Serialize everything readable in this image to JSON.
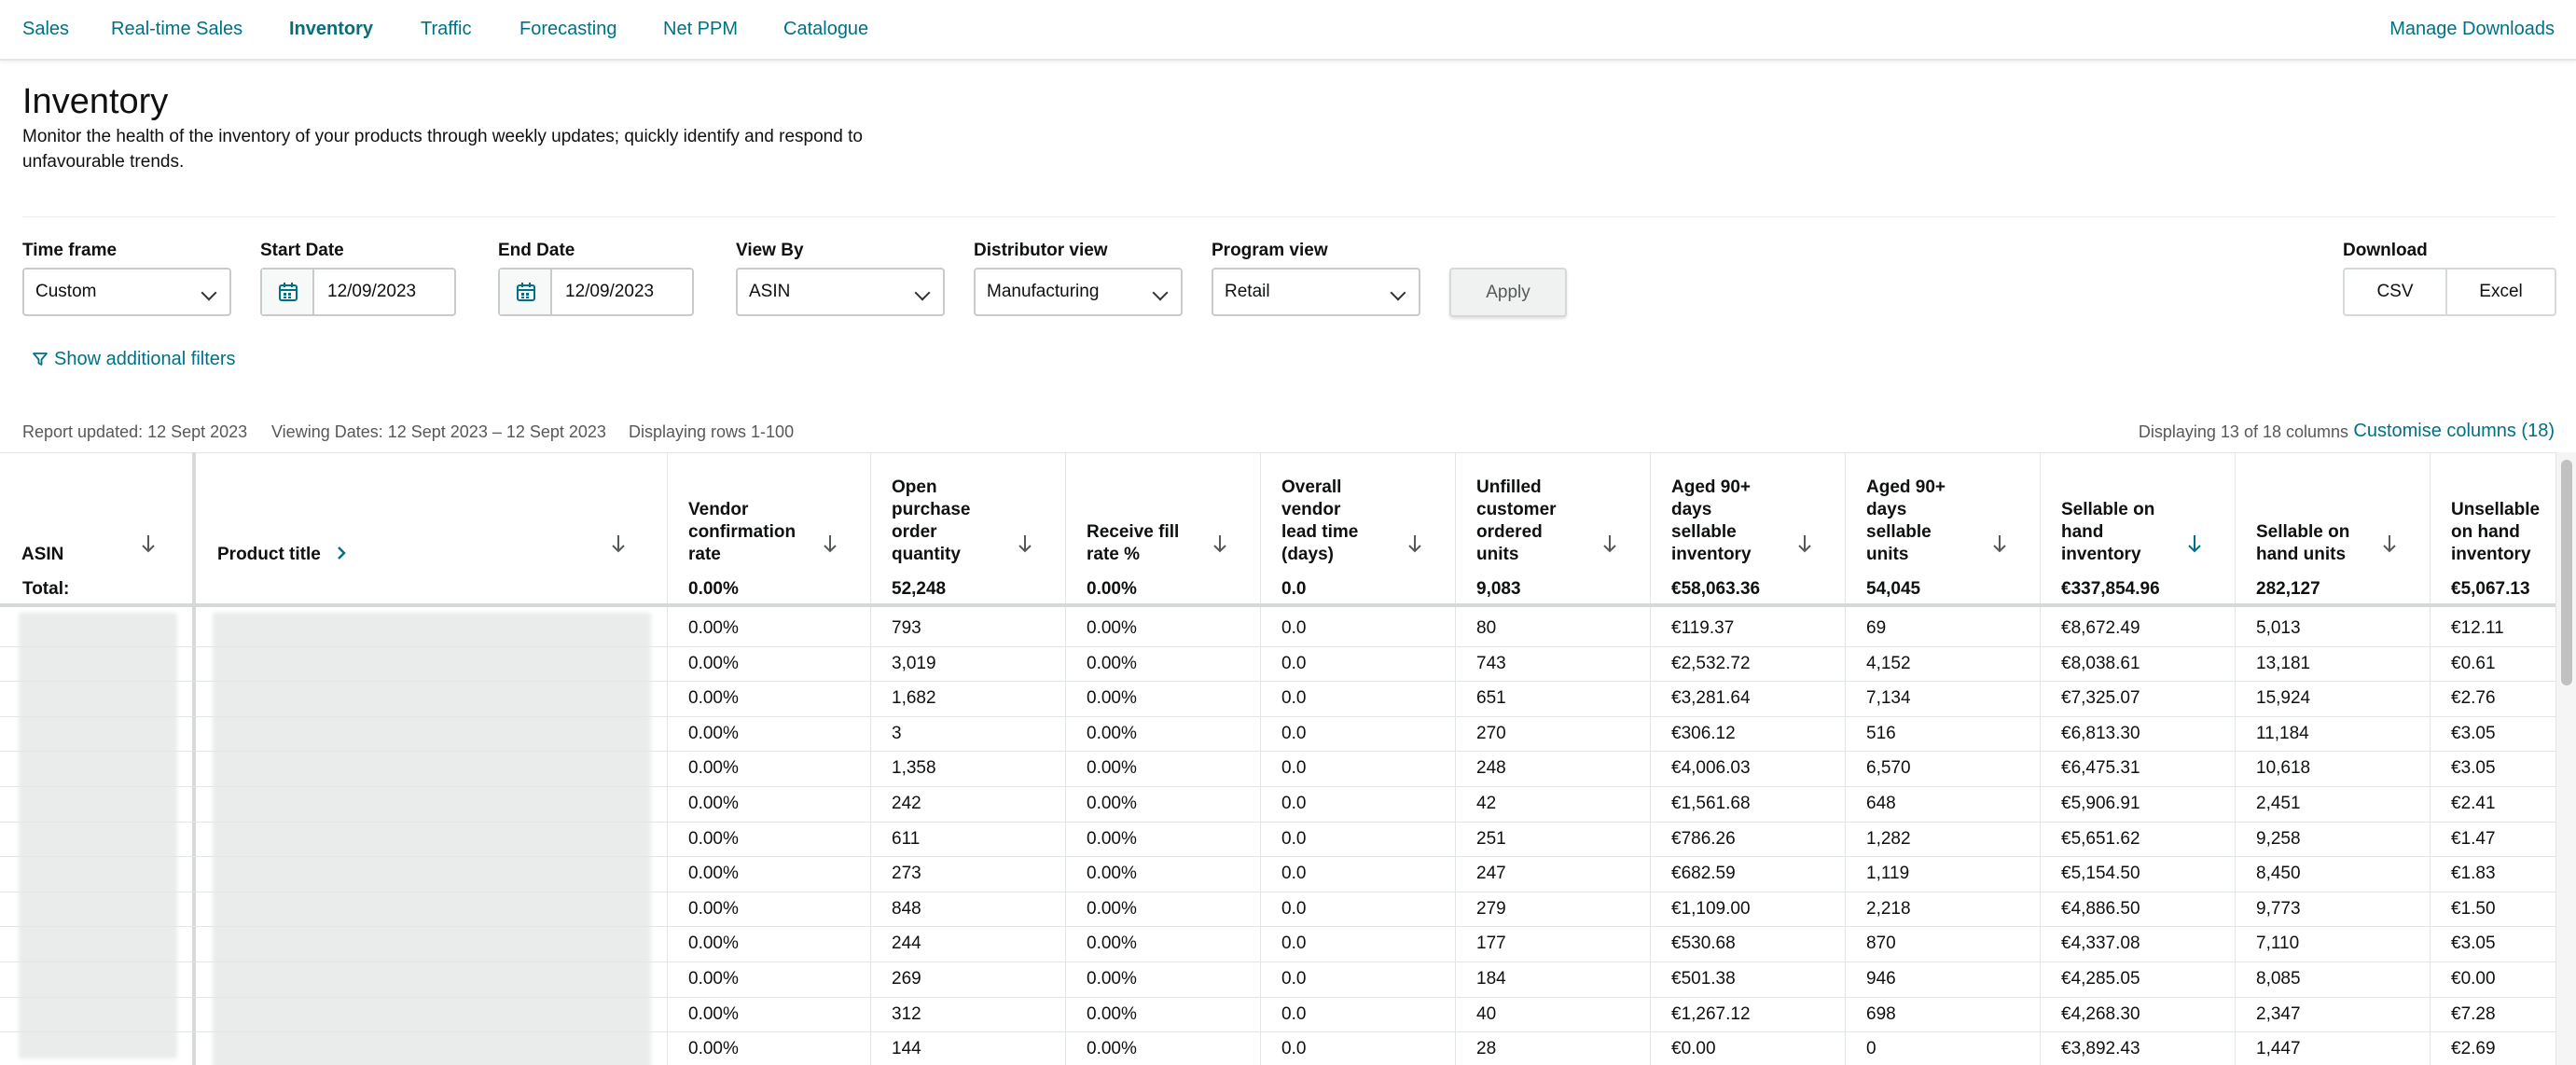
{
  "nav": {
    "items": [
      "Sales",
      "Real-time Sales",
      "Inventory",
      "Traffic",
      "Forecasting",
      "Net PPM",
      "Catalogue"
    ],
    "active": "Inventory",
    "manage_downloads": "Manage Downloads"
  },
  "page": {
    "title": "Inventory",
    "description": "Monitor the health of the inventory of your products through weekly updates; quickly identify and respond to unfavourable trends."
  },
  "filters": {
    "time_frame": {
      "label": "Time frame",
      "value": "Custom"
    },
    "start_date": {
      "label": "Start Date",
      "value": "12/09/2023"
    },
    "end_date": {
      "label": "End Date",
      "value": "12/09/2023"
    },
    "view_by": {
      "label": "View By",
      "value": "ASIN"
    },
    "distributor_view": {
      "label": "Distributor view",
      "value": "Manufacturing"
    },
    "program_view": {
      "label": "Program view",
      "value": "Retail"
    },
    "apply_label": "Apply",
    "download": {
      "label": "Download",
      "csv": "CSV",
      "excel": "Excel"
    },
    "additional_filters": "Show additional filters"
  },
  "report": {
    "updated": "Report updated: 12 Sept 2023",
    "viewing_dates": "Viewing Dates: 12 Sept 2023 – 12 Sept 2023",
    "displaying_rows": "Displaying rows 1-100",
    "displaying_columns": "Displaying 13 of 18 columns",
    "customise": "Customise columns (18)"
  },
  "table": {
    "headers": {
      "asin": "ASIN",
      "product_title": "Product title",
      "vendor_confirmation": [
        "Vendor",
        "confirmation",
        "rate"
      ],
      "open_po": [
        "Open",
        "purchase",
        "order",
        "quantity"
      ],
      "receive_fill": [
        "Receive fill",
        "rate %"
      ],
      "lead_time": [
        "Overall",
        "vendor",
        "lead time",
        "(days)"
      ],
      "unfilled": [
        "Unfilled",
        "customer",
        "ordered",
        "units"
      ],
      "aged_inventory": [
        "Aged 90+",
        "days",
        "sellable",
        "inventory"
      ],
      "aged_units": [
        "Aged 90+",
        "days",
        "sellable",
        "units"
      ],
      "sellable_inventory": [
        "Sellable on",
        "hand",
        "inventory"
      ],
      "sellable_units": [
        "Sellable on",
        "hand units"
      ],
      "unsellable_inventory": [
        "Unsellable",
        "on hand",
        "inventory"
      ]
    },
    "total": {
      "label": "Total:",
      "values": [
        "0.00%",
        "52,248",
        "0.00%",
        "0.0",
        "9,083",
        "€58,063.36",
        "54,045",
        "€337,854.96",
        "282,127",
        "€5,067.13"
      ]
    },
    "rows": [
      [
        "0.00%",
        "793",
        "0.00%",
        "0.0",
        "80",
        "€119.37",
        "69",
        "€8,672.49",
        "5,013",
        "€12.11"
      ],
      [
        "0.00%",
        "3,019",
        "0.00%",
        "0.0",
        "743",
        "€2,532.72",
        "4,152",
        "€8,038.61",
        "13,181",
        "€0.61"
      ],
      [
        "0.00%",
        "1,682",
        "0.00%",
        "0.0",
        "651",
        "€3,281.64",
        "7,134",
        "€7,325.07",
        "15,924",
        "€2.76"
      ],
      [
        "0.00%",
        "3",
        "0.00%",
        "0.0",
        "270",
        "€306.12",
        "516",
        "€6,813.30",
        "11,184",
        "€3.05"
      ],
      [
        "0.00%",
        "1,358",
        "0.00%",
        "0.0",
        "248",
        "€4,006.03",
        "6,570",
        "€6,475.31",
        "10,618",
        "€3.05"
      ],
      [
        "0.00%",
        "242",
        "0.00%",
        "0.0",
        "42",
        "€1,561.68",
        "648",
        "€5,906.91",
        "2,451",
        "€2.41"
      ],
      [
        "0.00%",
        "611",
        "0.00%",
        "0.0",
        "251",
        "€786.26",
        "1,282",
        "€5,651.62",
        "9,258",
        "€1.47"
      ],
      [
        "0.00%",
        "273",
        "0.00%",
        "0.0",
        "247",
        "€682.59",
        "1,119",
        "€5,154.50",
        "8,450",
        "€1.83"
      ],
      [
        "0.00%",
        "848",
        "0.00%",
        "0.0",
        "279",
        "€1,109.00",
        "2,218",
        "€4,886.50",
        "9,773",
        "€1.50"
      ],
      [
        "0.00%",
        "244",
        "0.00%",
        "0.0",
        "177",
        "€530.68",
        "870",
        "€4,337.08",
        "7,110",
        "€3.05"
      ],
      [
        "0.00%",
        "269",
        "0.00%",
        "0.0",
        "184",
        "€501.38",
        "946",
        "€4,285.05",
        "8,085",
        "€0.00"
      ],
      [
        "0.00%",
        "312",
        "0.00%",
        "0.0",
        "40",
        "€1,267.12",
        "698",
        "€4,268.30",
        "2,347",
        "€7.28"
      ],
      [
        "0.00%",
        "144",
        "0.00%",
        "0.0",
        "28",
        "€0.00",
        "0",
        "€3,892.43",
        "1,447",
        "€2.69"
      ]
    ]
  },
  "colors": {
    "link": "#007185",
    "border": "#d5d9d9",
    "text": "#0f1111",
    "muted": "#565959"
  }
}
